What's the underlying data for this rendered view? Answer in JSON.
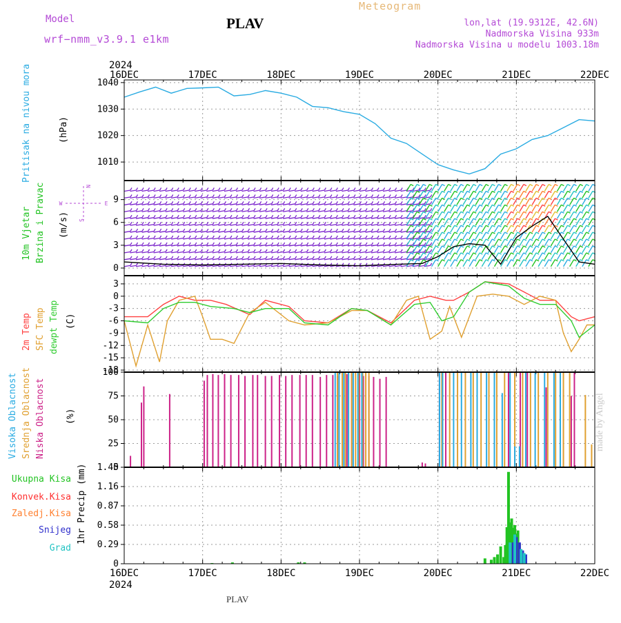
{
  "header": {
    "model_label": "Model",
    "model_name": "wrf−nmm_v3.9.1  e1km",
    "station": "PLAV",
    "meteogram": "Meteogram",
    "lonlat": "lon,lat (19.9312E, 42.6N)",
    "elevation": "Nadmorska Visina 933m",
    "elevation_model": "Nadmorska Visina u modelu 1003.18m",
    "footer_station": "PLAV",
    "made_by": "made by Angel"
  },
  "time_axis": {
    "year": "2024",
    "days": [
      "16DEC",
      "17DEC",
      "18DEC",
      "19DEC",
      "20DEC",
      "21DEC",
      "22DEC"
    ]
  },
  "colors": {
    "pressure": "#29abe2",
    "wind_label": "#22c322",
    "wind_barbs": "#7a22cc",
    "temp": "#ff4040",
    "sfc_temp": "#e0a030",
    "dewpt": "#30cc30",
    "high_cloud": "#29abe2",
    "mid_cloud": "#e0a030",
    "low_cloud": "#cc2288",
    "total_precip": "#22c322",
    "conv_precip": "#ff3030",
    "frozen_precip": "#ff8030",
    "snow": "#3030cc",
    "graupel": "#22c3c3",
    "purple": "#b44ad6"
  },
  "chart_data": [
    {
      "type": "line",
      "panel": "pressure",
      "label": "Pritisak na nivou mora",
      "unit": "(hPa)",
      "ylim": [
        1003,
        1041
      ],
      "y_ticks": [
        "1040",
        "1030",
        "1020",
        "1010"
      ],
      "grid": true,
      "series": [
        {
          "name": "Pritisak na nivou mora",
          "x": [
            0,
            0.2,
            0.4,
            0.6,
            0.8,
            1.0,
            1.2,
            1.4,
            1.6,
            1.8,
            2.0,
            2.2,
            2.4,
            2.6,
            2.8,
            3.0,
            3.2,
            3.4,
            3.6,
            3.8,
            4.0,
            4.2,
            4.4,
            4.6,
            4.8,
            5.0,
            5.2,
            5.4,
            5.6,
            5.8,
            6.0
          ],
          "y": [
            1034.5,
            1036.5,
            1038.3,
            1036,
            1037.8,
            1038,
            1038.3,
            1035,
            1035.5,
            1037,
            1036,
            1034.5,
            1031,
            1030.5,
            1029,
            1028,
            1024.5,
            1019,
            1017,
            1013,
            1009,
            1007,
            1005.5,
            1007.5,
            1013,
            1015,
            1018.5,
            1020,
            1023,
            1026,
            1025.5
          ]
        }
      ]
    },
    {
      "type": "line",
      "panel": "wind",
      "label": "10m Vjetar Brzina i Pravac",
      "unit": "(m/s)",
      "compass": [
        "W",
        "E",
        "N",
        "S"
      ],
      "ylim": [
        -1,
        11.5
      ],
      "y_ticks": [
        "9",
        "6",
        "3",
        "0"
      ],
      "grid": true,
      "series": [
        {
          "name": "10m Vjetar",
          "x": [
            0,
            0.5,
            1.0,
            1.5,
            2.0,
            2.5,
            3.0,
            3.5,
            3.8,
            4.0,
            4.2,
            4.4,
            4.6,
            4.8,
            5.0,
            5.2,
            5.4,
            5.6,
            5.8,
            6.0
          ],
          "y": [
            0.8,
            0.5,
            0.4,
            0.5,
            0.6,
            0.4,
            0.3,
            0.5,
            0.6,
            1.5,
            2.8,
            3.2,
            3.0,
            0.5,
            4.0,
            5.5,
            6.8,
            3.8,
            0.8,
            0.5
          ]
        }
      ]
    },
    {
      "type": "line",
      "panel": "temperature",
      "unit": "(C)",
      "ylim": [
        -18.5,
        5
      ],
      "y_ticks": [
        "3",
        "0",
        "-3",
        "-6",
        "-9",
        "-12",
        "-15",
        "-18"
      ],
      "grid": true,
      "series": [
        {
          "name": "2m Temp",
          "x": [
            0,
            0.3,
            0.5,
            0.7,
            0.9,
            1.1,
            1.3,
            1.6,
            1.8,
            2.1,
            2.3,
            2.6,
            2.9,
            3.1,
            3.4,
            3.7,
            3.9,
            4.1,
            4.2,
            4.4,
            4.6,
            4.9,
            5.1,
            5.3,
            5.5,
            5.7,
            5.8,
            6.0
          ],
          "y": [
            -5,
            -5,
            -2,
            0,
            -1,
            -1,
            -2,
            -4.5,
            -1,
            -2.5,
            -6,
            -6.5,
            -3,
            -3.5,
            -6.5,
            -1,
            0,
            -1,
            -1,
            1,
            3.5,
            3,
            1,
            -1,
            -1,
            -5,
            -6,
            -5
          ]
        },
        {
          "name": "SFC Temp",
          "x": [
            0,
            0.15,
            0.3,
            0.45,
            0.55,
            0.7,
            0.9,
            1.0,
            1.1,
            1.25,
            1.4,
            1.6,
            1.8,
            2.1,
            2.3,
            2.6,
            2.9,
            3.1,
            3.4,
            3.6,
            3.75,
            3.9,
            4.05,
            4.15,
            4.3,
            4.5,
            4.7,
            4.9,
            5.1,
            5.3,
            5.5,
            5.6,
            5.7,
            5.8,
            5.9,
            6.0
          ],
          "y": [
            -6,
            -17,
            -7,
            -16,
            -6,
            -1,
            0,
            -5,
            -10.5,
            -10.5,
            -11.5,
            -4,
            -1.5,
            -6,
            -7,
            -6.5,
            -3.5,
            -3.5,
            -7,
            -1,
            0,
            -10.5,
            -8.5,
            -2.5,
            -10,
            0,
            0.5,
            0,
            -2,
            0,
            -1,
            -9,
            -13.5,
            -10.5,
            -7,
            -7
          ]
        },
        {
          "name": "dewpt Temp",
          "x": [
            0,
            0.3,
            0.5,
            0.7,
            0.9,
            1.1,
            1.4,
            1.6,
            1.8,
            2.1,
            2.3,
            2.6,
            2.9,
            3.1,
            3.4,
            3.7,
            3.9,
            4.05,
            4.2,
            4.4,
            4.6,
            4.9,
            5.1,
            5.3,
            5.5,
            5.7,
            5.8,
            6.0
          ],
          "y": [
            -6,
            -6.5,
            -3,
            -1.5,
            -1.5,
            -2.5,
            -3,
            -4,
            -3,
            -3,
            -6.5,
            -7,
            -3,
            -3.5,
            -7,
            -2,
            -1.5,
            -6,
            -5,
            1,
            3.5,
            2.5,
            -0.5,
            -2,
            -2,
            -6,
            -10,
            -7
          ]
        }
      ]
    },
    {
      "type": "bar",
      "panel": "clouds",
      "unit": "(%)",
      "ylim": [
        0,
        100
      ],
      "y_ticks": [
        "100",
        "75",
        "50",
        "25",
        "0"
      ],
      "grid": true,
      "series": [
        {
          "name": "Niska Oblacnost",
          "x": [
            0.08,
            0.22,
            0.25,
            0.58,
            1.02,
            1.06,
            1.13,
            1.2,
            1.28,
            1.36,
            1.46,
            1.54,
            1.64,
            1.7,
            1.8,
            1.88,
            1.98,
            2.06,
            2.14,
            2.24,
            2.32,
            2.4,
            2.5,
            2.58,
            2.66,
            2.72,
            2.78,
            2.84,
            2.9,
            3.0,
            3.05,
            3.12,
            3.18,
            3.26,
            3.34,
            3.8,
            3.84,
            4.02,
            4.1,
            4.5,
            4.9,
            5.05,
            5.14,
            5.38,
            5.6,
            5.7,
            5.74
          ],
          "y": [
            12,
            68,
            85,
            77,
            91,
            97,
            98,
            97,
            98,
            97,
            97,
            96,
            97,
            97,
            96,
            96,
            97,
            96,
            97,
            97,
            97,
            97,
            95,
            97,
            97,
            96,
            97,
            98,
            98,
            97,
            96,
            96,
            95,
            93,
            95,
            5,
            4,
            100,
            100,
            100,
            100,
            100,
            100,
            84,
            82,
            75,
            100
          ]
        },
        {
          "name": "Srednja Oblacnost",
          "x": [
            2.72,
            2.78,
            2.82,
            2.86,
            2.9,
            2.95,
            2.99,
            3.04,
            3.08,
            3.12,
            4.05,
            4.15,
            4.25,
            4.35,
            4.45,
            4.55,
            4.65,
            4.75,
            4.85,
            4.98,
            5.08,
            5.18,
            5.28,
            5.4,
            5.5,
            5.6,
            5.68,
            5.88,
            5.96
          ],
          "y": [
            100,
            100,
            100,
            100,
            100,
            100,
            100,
            100,
            100,
            100,
            100,
            100,
            100,
            100,
            100,
            100,
            100,
            100,
            100,
            100,
            100,
            100,
            100,
            100,
            100,
            100,
            100,
            76,
            24
          ]
        },
        {
          "name": "Visoka Oblacnost",
          "x": [
            2.69,
            2.74,
            2.8,
            2.86,
            2.92,
            2.98,
            3.03,
            4.02,
            4.06,
            4.2,
            4.3,
            4.42,
            4.5,
            4.62,
            4.72,
            4.82,
            4.92,
            4.98,
            5.04,
            5.12,
            5.24,
            5.36,
            5.48,
            5.56
          ],
          "y": [
            100,
            100,
            100,
            100,
            100,
            100,
            100,
            100,
            100,
            100,
            100,
            100,
            100,
            100,
            100,
            78,
            100,
            22,
            22,
            100,
            100,
            100,
            100,
            100
          ]
        }
      ]
    },
    {
      "type": "bar",
      "panel": "precipitation",
      "unit": "1hr Precip (mm)",
      "ylim": [
        0,
        1.45
      ],
      "y_ticks": [
        "1.45",
        "1.16",
        "0.87",
        "0.58",
        "0.29",
        "0"
      ],
      "grid": true,
      "series": [
        {
          "name": "Ukupna Kisa",
          "x": [
            1.12,
            1.38,
            2.22,
            2.3,
            4.6,
            4.68,
            4.72,
            4.76,
            4.8,
            4.84,
            4.86,
            4.88,
            4.9,
            4.92,
            4.94,
            4.96,
            4.98,
            5.0,
            5.02,
            5.04,
            5.08,
            5.12
          ],
          "y": [
            0.01,
            0.02,
            0.02,
            0.02,
            0.08,
            0.06,
            0.1,
            0.14,
            0.26,
            0.1,
            0.28,
            0.55,
            1.38,
            0.62,
            0.68,
            0.54,
            0.58,
            0.45,
            0.5,
            0.3,
            0.18,
            0.1
          ]
        },
        {
          "name": "Snijeg",
          "x": [
            4.96,
            5.0,
            5.04,
            5.08,
            5.12
          ],
          "y": [
            0.32,
            0.4,
            0.32,
            0.2,
            0.14
          ]
        },
        {
          "name": "Grad",
          "x": [
            4.92,
            4.98,
            5.06,
            5.1
          ],
          "y": [
            0.32,
            0.44,
            0.22,
            0.16
          ]
        }
      ]
    }
  ],
  "labels": {
    "pressure": "Pritisak na nivou mora",
    "wind_a": "10m Vjetar",
    "wind_b": "Brzina i Pravac",
    "temp_2m": "2m Temp",
    "temp_sfc": "SFC Temp",
    "temp_dew": "dewpt Temp",
    "cloud_high": "Visoka Oblacnost",
    "cloud_mid": "Srednja Oblacnost",
    "cloud_low": "Niska Oblacnost",
    "precip_total": "Ukupna Kisa",
    "precip_conv": "Konvek.Kisa",
    "precip_frozen": "Zaledj.Kisa",
    "precip_snow": "Snijeg",
    "precip_grad": "Grad"
  }
}
